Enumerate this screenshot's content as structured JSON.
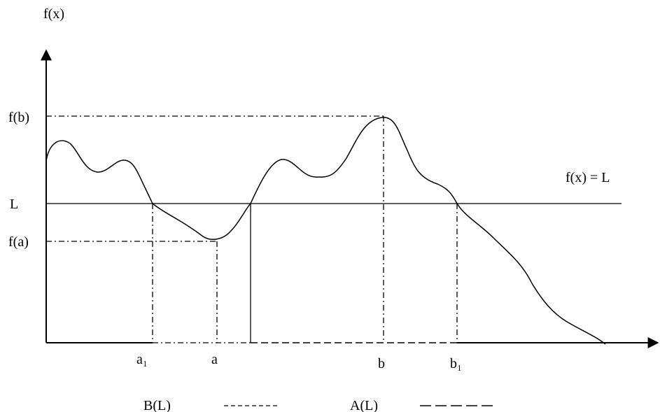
{
  "axis_labels": {
    "y": "f(x)"
  },
  "y_labels": {
    "fb": "f(b)",
    "L": "L",
    "fa": "f(a)"
  },
  "x_labels": {
    "a1": "a₁",
    "a": "a",
    "b": "b",
    "b1": "b₁"
  },
  "line_label": "f(x) = L",
  "legend": {
    "B": "B(L)",
    "A": "A(L)"
  }
}
